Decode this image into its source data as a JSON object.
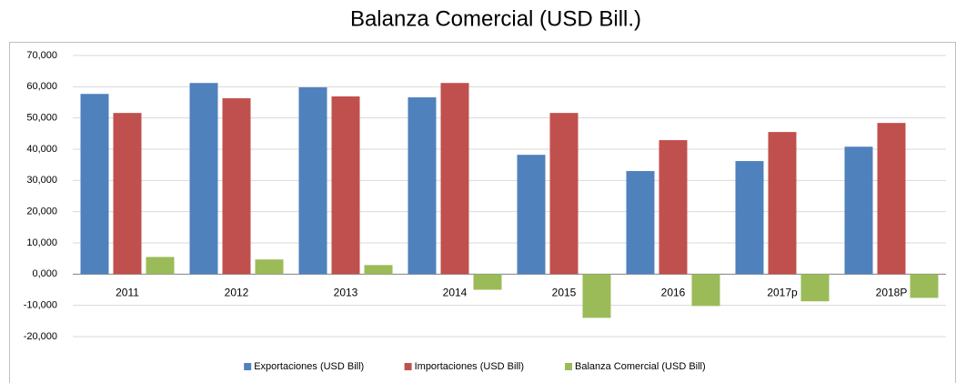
{
  "chart_data": {
    "type": "bar",
    "title": "Balanza Comercial (USD Bill.)",
    "categories": [
      "2011",
      "2012",
      "2013",
      "2014",
      "2015",
      "2016",
      "2017p",
      "2018P"
    ],
    "series": [
      {
        "name": "Exportaciones (USD Bill)",
        "color": "#4f81bd",
        "values": [
          57700,
          61200,
          59800,
          56600,
          38200,
          33000,
          36200,
          40800
        ]
      },
      {
        "name": "Importaciones (USD Bill)",
        "color": "#c0504d",
        "values": [
          51600,
          56300,
          56900,
          61200,
          51600,
          42900,
          45500,
          48400
        ]
      },
      {
        "name": "Balanza Comercial (USD Bill)",
        "color": "#9bbb59",
        "values": [
          5500,
          4700,
          2900,
          -5000,
          -14000,
          -10200,
          -8700,
          -7600
        ]
      }
    ],
    "ylim": [
      -20000,
      70000
    ],
    "yticks": [
      {
        "value": -20000,
        "label": "-20,000"
      },
      {
        "value": -10000,
        "label": "-10,000"
      },
      {
        "value": 0,
        "label": "0,000"
      },
      {
        "value": 10000,
        "label": "10,000"
      },
      {
        "value": 20000,
        "label": "20,000"
      },
      {
        "value": 30000,
        "label": "30,000"
      },
      {
        "value": 40000,
        "label": "40,000"
      },
      {
        "value": 50000,
        "label": "50,000"
      },
      {
        "value": 60000,
        "label": "60,000"
      },
      {
        "value": 70000,
        "label": "70,000"
      }
    ],
    "grid": true,
    "legend": "bottom"
  }
}
